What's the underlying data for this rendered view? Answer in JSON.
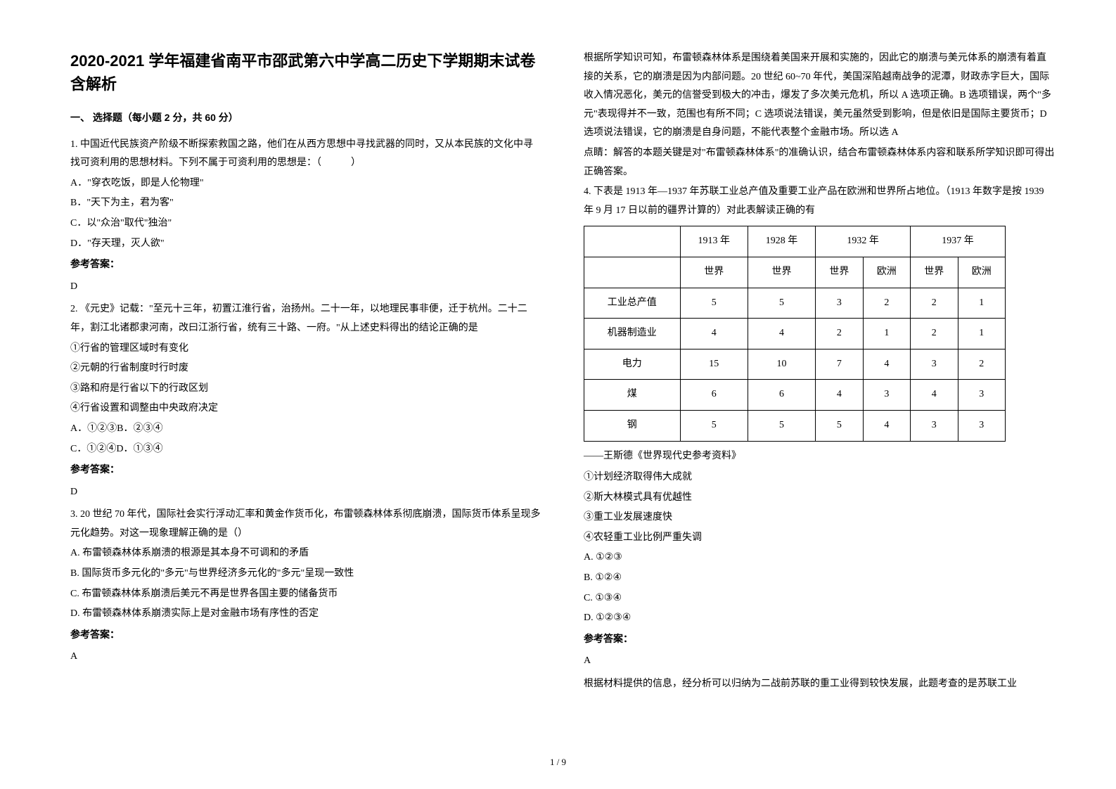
{
  "title": "2020-2021 学年福建省南平市邵武第六中学高二历史下学期期末试卷含解析",
  "section_header": "一、 选择题（每小题 2 分，共 60 分）",
  "q1": {
    "stem": "1. 中国近代民族资产阶级不断探索救国之路，他们在从西方思想中寻找武器的同时，又从本民族的文化中寻找可资利用的思想材料。下列不属于可资利用的思想是：（　　　）",
    "A": "A．\"穿衣吃饭，即是人伦物理\"",
    "B": "B．\"天下为主，君为客\"",
    "C": "C．以\"众治\"取代\"独治\"",
    "D": "D．\"存天理，灭人欲\"",
    "ans_label": "参考答案：",
    "ans": "D"
  },
  "q2": {
    "stem": "2. 《元史》记载：\"至元十三年，初置江淮行省，治扬州。二十一年，以地理民事非便，迁于杭州。二十二年，割江北诸郡隶河南，改曰江浙行省，统有三十路、一府。\"从上述史料得出的结论正确的是",
    "o1": "①行省的管理区域时有变化",
    "o2": "②元朝的行省制度时行时废",
    "o3": "③路和府是行省以下的行政区划",
    "o4": "④行省设置和调整由中央政府决定",
    "A": "A．①②③B．②③④",
    "C": "C．①②④D．①③④",
    "ans_label": "参考答案：",
    "ans": "D"
  },
  "q3": {
    "stem": "3. 20 世纪 70 年代，国际社会实行浮动汇率和黄金作货币化，布雷顿森林体系彻底崩溃，国际货币体系呈现多元化趋势。对这一现象理解正确的是（）",
    "A": "A. 布雷顿森林体系崩溃的根源是其本身不可调和的矛盾",
    "B": "B. 国际货币多元化的\"多元\"与世界经济多元化的\"多元\"呈现一致性",
    "C": "C. 布雷顿森林体系崩溃后美元不再是世界各国主要的储备货币",
    "D": "D. 布雷顿森林体系崩溃实际上是对金融市场有序性的否定",
    "ans_label": "参考答案：",
    "ans": "A"
  },
  "right": {
    "p1": "根据所学知识可知，布雷顿森林体系是围绕着美国来开展和实施的，因此它的崩溃与美元体系的崩溃有着直接的关系，它的崩溃是因为内部问题。20 世纪 60~70 年代，美国深陷越南战争的泥潭，财政赤字巨大，国际收入情况恶化，美元的信誉受到极大的冲击，爆发了多次美元危机，所以 A 选项正确。B 选项错误，两个\"多元\"表现得并不一致，范围也有所不同；C 选项说法错误，美元虽然受到影响，但是依旧是国际主要货币；D 选项说法错误，它的崩溃是自身问题，不能代表整个金融市场。所以选 A",
    "p2": "点睛：解答的本题关键是对\"布雷顿森林体系\"的准确认识，结合布雷顿森林体系内容和联系所学知识即可得出正确答案。"
  },
  "q4": {
    "stem": "4. 下表是 1913 年—1937 年苏联工业总产值及重要工业产品在欧洲和世界所占地位。（1913 年数字是按 1939 年 9 月 17 日以前的疆界计算的）对此表解读正确的有",
    "table": {
      "headerYears": [
        "",
        "1913 年",
        "1928 年",
        "1932 年",
        "1937 年"
      ],
      "subRegions": [
        "",
        "世界",
        "世界",
        "世界",
        "欧洲",
        "世界",
        "欧洲"
      ],
      "rows": [
        {
          "label": "工业总产值",
          "cells": [
            "5",
            "5",
            "3",
            "2",
            "2",
            "1"
          ]
        },
        {
          "label": "机器制造业",
          "cells": [
            "4",
            "4",
            "2",
            "1",
            "2",
            "1"
          ]
        },
        {
          "label": "电力",
          "cells": [
            "15",
            "10",
            "7",
            "4",
            "3",
            "2"
          ]
        },
        {
          "label": "煤",
          "cells": [
            "6",
            "6",
            "4",
            "3",
            "4",
            "3"
          ]
        },
        {
          "label": "钢",
          "cells": [
            "5",
            "5",
            "5",
            "4",
            "3",
            "3"
          ]
        }
      ]
    },
    "source": "——王斯德《世界现代史参考资料》",
    "o1": "①计划经济取得伟大成就",
    "o2": "②斯大林模式具有优越性",
    "o3": "③重工业发展速度快",
    "o4": "④农轻重工业比例严重失调",
    "A": "A. ①②③",
    "B": "B.  ①②④",
    "C": "C.  ①③④",
    "D": "D.  ①②③④",
    "ans_label": "参考答案：",
    "ans": "A",
    "explain": "根据材料提供的信息，经分析可以归纳为二战前苏联的重工业得到较快发展，此题考查的是苏联工业"
  },
  "pagenum": "1 / 9"
}
